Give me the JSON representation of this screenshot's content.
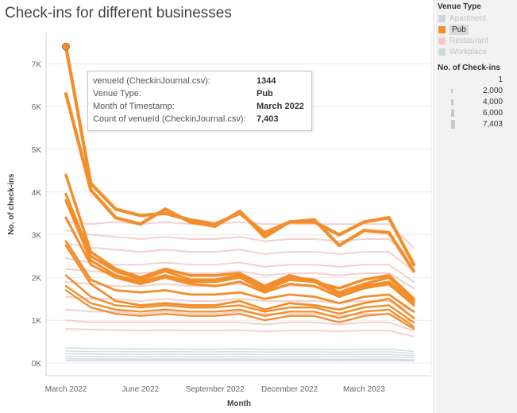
{
  "chart_data": {
    "type": "line",
    "title": "Check-ins for different businesses",
    "xlabel": "Month",
    "ylabel": "No. of check-ins",
    "ylim": [
      0,
      7800
    ],
    "yticks": [
      0,
      1000,
      2000,
      3000,
      4000,
      5000,
      6000,
      7000
    ],
    "ytick_labels": [
      "0K",
      "1K",
      "2K",
      "3K",
      "4K",
      "5K",
      "6K",
      "7K"
    ],
    "x_months": [
      "Mar 2022",
      "Apr 2022",
      "May 2022",
      "Jun 2022",
      "Jul 2022",
      "Aug 2022",
      "Sep 2022",
      "Oct 2022",
      "Nov 2022",
      "Dec 2022",
      "Jan 2023",
      "Feb 2023",
      "Mar 2023",
      "Apr 2023",
      "May 2023"
    ],
    "xticks": [
      {
        "label": "March 2022",
        "index": 0
      },
      {
        "label": "June 2022",
        "index": 3
      },
      {
        "label": "September 2022",
        "index": 6
      },
      {
        "label": "December 2022",
        "index": 9
      },
      {
        "label": "March 2023",
        "index": 12
      }
    ],
    "grid": "horizontal",
    "legend": {
      "title": "Venue Type",
      "position": "right",
      "items": [
        {
          "name": "Apartment",
          "color": "#ccd6de",
          "state": "dim"
        },
        {
          "name": "Pub",
          "color": "#f28e2b",
          "state": "selected"
        },
        {
          "name": "Restaurant",
          "color": "#f3c8c8",
          "state": "dim"
        },
        {
          "name": "Workplace",
          "color": "#c8dcd8",
          "state": "dim"
        }
      ]
    },
    "size_legend": {
      "title": "No. of Check-ins",
      "items": [
        "1",
        "2,000",
        "4,000",
        "6,000",
        "7,403"
      ]
    },
    "series": [
      {
        "name": "Pub",
        "venue_id": "1344",
        "values": [
          7403,
          4200,
          3600,
          3450,
          3500,
          3350,
          3250,
          3500,
          3050,
          3300,
          3300,
          3000,
          3300,
          3400,
          2300
        ]
      },
      {
        "name": "Pub",
        "values": [
          6300,
          4050,
          3400,
          3250,
          3600,
          3300,
          3200,
          3550,
          2950,
          3300,
          3350,
          2750,
          3100,
          3050,
          2150
        ]
      },
      {
        "name": "Pub",
        "values": [
          4400,
          2600,
          2200,
          2000,
          2200,
          2050,
          2050,
          2100,
          1800,
          2050,
          1900,
          1750,
          1950,
          2050,
          1500
        ]
      },
      {
        "name": "Pub",
        "values": [
          3950,
          2500,
          2150,
          1950,
          2150,
          1950,
          1950,
          2050,
          1750,
          2000,
          1950,
          1650,
          1850,
          2000,
          1450
        ]
      },
      {
        "name": "Pub",
        "values": [
          3800,
          2400,
          2050,
          1900,
          2050,
          1900,
          1900,
          2000,
          1700,
          1950,
          1900,
          1600,
          1800,
          1900,
          1400
        ]
      },
      {
        "name": "Pub",
        "values": [
          3400,
          2300,
          2000,
          1850,
          2000,
          1850,
          1800,
          1900,
          1650,
          1850,
          1800,
          1550,
          1750,
          1850,
          1350
        ]
      },
      {
        "name": "Pub",
        "values": [
          2850,
          1950,
          1700,
          1650,
          1700,
          1600,
          1600,
          1650,
          1500,
          1600,
          1550,
          1400,
          1550,
          1600,
          1200
        ]
      },
      {
        "name": "Pub",
        "values": [
          2750,
          1850,
          1450,
          1350,
          1400,
          1350,
          1350,
          1450,
          1250,
          1400,
          1350,
          1250,
          1400,
          1500,
          1050
        ]
      },
      {
        "name": "Pub",
        "values": [
          2050,
          1550,
          1350,
          1300,
          1350,
          1300,
          1300,
          1350,
          1200,
          1300,
          1300,
          1150,
          1300,
          1350,
          950
        ]
      },
      {
        "name": "Pub",
        "values": [
          1800,
          1400,
          1250,
          1200,
          1250,
          1200,
          1200,
          1250,
          1100,
          1200,
          1200,
          1050,
          1200,
          1250,
          850
        ]
      },
      {
        "name": "Pub",
        "values": [
          1700,
          1300,
          1150,
          1100,
          1150,
          1100,
          1100,
          1150,
          1000,
          1100,
          1100,
          950,
          1100,
          1150,
          800
        ]
      },
      {
        "name": "Restaurant",
        "values": [
          3300,
          3250,
          3300,
          3250,
          3300,
          3250,
          3250,
          3300,
          3250,
          3250,
          3250,
          3250,
          3250,
          3250,
          2700
        ]
      },
      {
        "name": "Restaurant",
        "values": [
          3100,
          3000,
          2950,
          2900,
          2950,
          2900,
          2900,
          2950,
          2850,
          2900,
          2900,
          2850,
          2900,
          2900,
          2400
        ]
      },
      {
        "name": "Restaurant",
        "values": [
          2800,
          2700,
          2650,
          2600,
          2650,
          2600,
          2600,
          2650,
          2550,
          2600,
          2600,
          2550,
          2600,
          2600,
          2150
        ]
      },
      {
        "name": "Restaurant",
        "values": [
          2450,
          2350,
          2300,
          2300,
          2350,
          2300,
          2300,
          2350,
          2250,
          2300,
          2300,
          2250,
          2300,
          2300,
          1900
        ]
      },
      {
        "name": "Restaurant",
        "values": [
          2200,
          2150,
          2100,
          2100,
          2150,
          2100,
          2100,
          2150,
          2050,
          2100,
          2100,
          2050,
          2100,
          2100,
          1750
        ]
      },
      {
        "name": "Restaurant",
        "values": [
          1900,
          1850,
          1800,
          1800,
          1850,
          1800,
          1800,
          1850,
          1750,
          1800,
          1800,
          1750,
          1800,
          1800,
          1500
        ]
      },
      {
        "name": "Restaurant",
        "values": [
          1550,
          1500,
          1500,
          1450,
          1500,
          1450,
          1450,
          1500,
          1450,
          1450,
          1450,
          1400,
          1450,
          1450,
          1200
        ]
      },
      {
        "name": "Restaurant",
        "values": [
          1250,
          1200,
          1200,
          1150,
          1200,
          1150,
          1150,
          1200,
          1150,
          1150,
          1150,
          1100,
          1150,
          1150,
          950
        ]
      },
      {
        "name": "Restaurant",
        "values": [
          1000,
          950,
          950,
          950,
          950,
          950,
          950,
          950,
          900,
          950,
          950,
          900,
          950,
          950,
          750
        ]
      },
      {
        "name": "Restaurant",
        "values": [
          800,
          780,
          770,
          760,
          770,
          760,
          760,
          770,
          740,
          760,
          760,
          740,
          760,
          760,
          620
        ]
      },
      {
        "name": "Workplace",
        "values": [
          350,
          340,
          330,
          330,
          330,
          320,
          320,
          330,
          320,
          320,
          320,
          310,
          320,
          320,
          270
        ]
      },
      {
        "name": "Workplace",
        "values": [
          280,
          270,
          265,
          260,
          265,
          260,
          260,
          265,
          255,
          260,
          260,
          250,
          260,
          260,
          220
        ]
      },
      {
        "name": "Workplace",
        "values": [
          220,
          210,
          205,
          200,
          205,
          200,
          200,
          205,
          195,
          200,
          200,
          195,
          200,
          200,
          170
        ]
      },
      {
        "name": "Workplace",
        "values": [
          160,
          150,
          150,
          145,
          150,
          145,
          145,
          150,
          140,
          145,
          145,
          140,
          145,
          145,
          120
        ]
      },
      {
        "name": "Apartment",
        "values": [
          100,
          95,
          95,
          90,
          95,
          90,
          90,
          95,
          90,
          90,
          90,
          85,
          90,
          90,
          75
        ]
      },
      {
        "name": "Apartment",
        "values": [
          60,
          55,
          55,
          55,
          55,
          55,
          55,
          55,
          50,
          55,
          55,
          50,
          55,
          55,
          45
        ]
      }
    ],
    "highlight": {
      "series_index": 0,
      "point_index": 0
    },
    "tooltip": [
      {
        "key": "venueId (CheckinJournal.csv):",
        "value": "1344"
      },
      {
        "key": "Venue Type:",
        "value": "Pub"
      },
      {
        "key": "Month of Timestamp:",
        "value": "March 2022"
      },
      {
        "key": "Count of venueId (CheckinJournal.csv):",
        "value": "7,403"
      }
    ]
  }
}
